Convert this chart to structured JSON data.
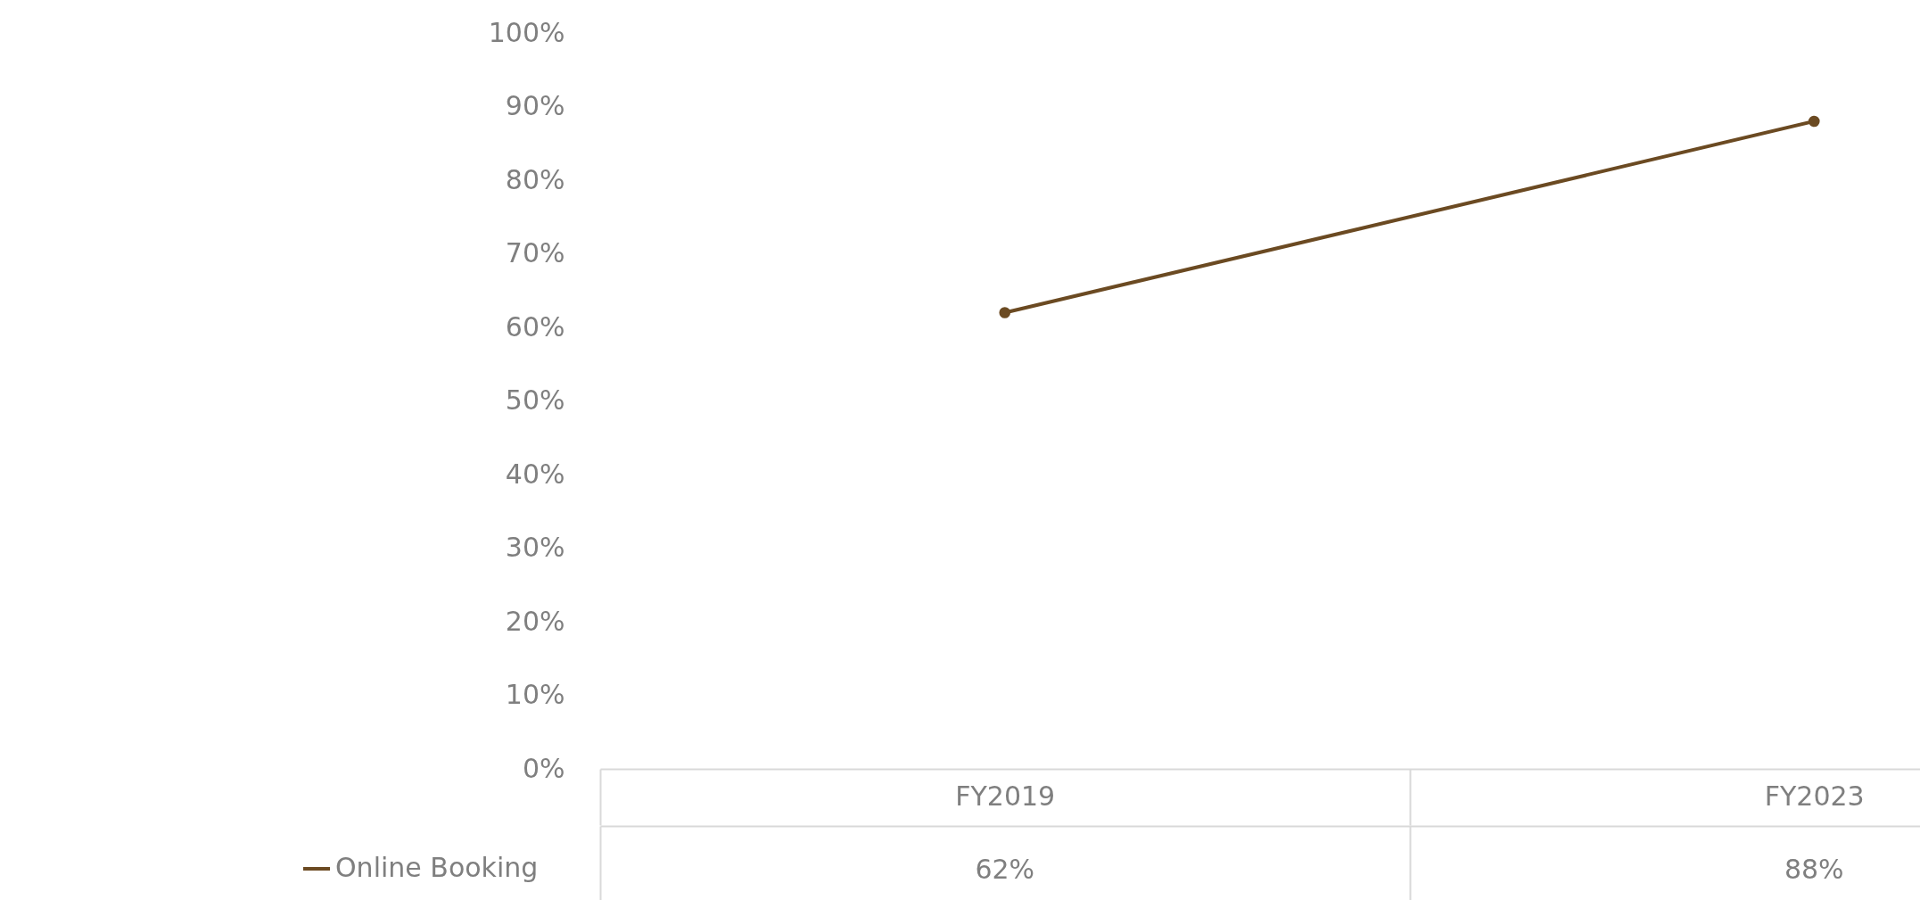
{
  "chart_data": {
    "type": "line",
    "categories": [
      "FY2019",
      "FY2023"
    ],
    "series": [
      {
        "name": "Online Booking",
        "color": "#6b4a22",
        "values": [
          62,
          88
        ],
        "value_labels": [
          "62%",
          "88%"
        ]
      }
    ],
    "ylim": [
      0,
      100
    ],
    "yticks": [
      {
        "value": 0,
        "label": "0%"
      },
      {
        "value": 10,
        "label": "10%"
      },
      {
        "value": 20,
        "label": "20%"
      },
      {
        "value": 30,
        "label": "30%"
      },
      {
        "value": 40,
        "label": "40%"
      },
      {
        "value": 50,
        "label": "50%"
      },
      {
        "value": 60,
        "label": "60%"
      },
      {
        "value": 70,
        "label": "70%"
      },
      {
        "value": 80,
        "label": "80%"
      },
      {
        "value": 90,
        "label": "90%"
      },
      {
        "value": 100,
        "label": "100%"
      }
    ],
    "legend": "bottom",
    "marker": "circle",
    "line_style": "solid"
  }
}
